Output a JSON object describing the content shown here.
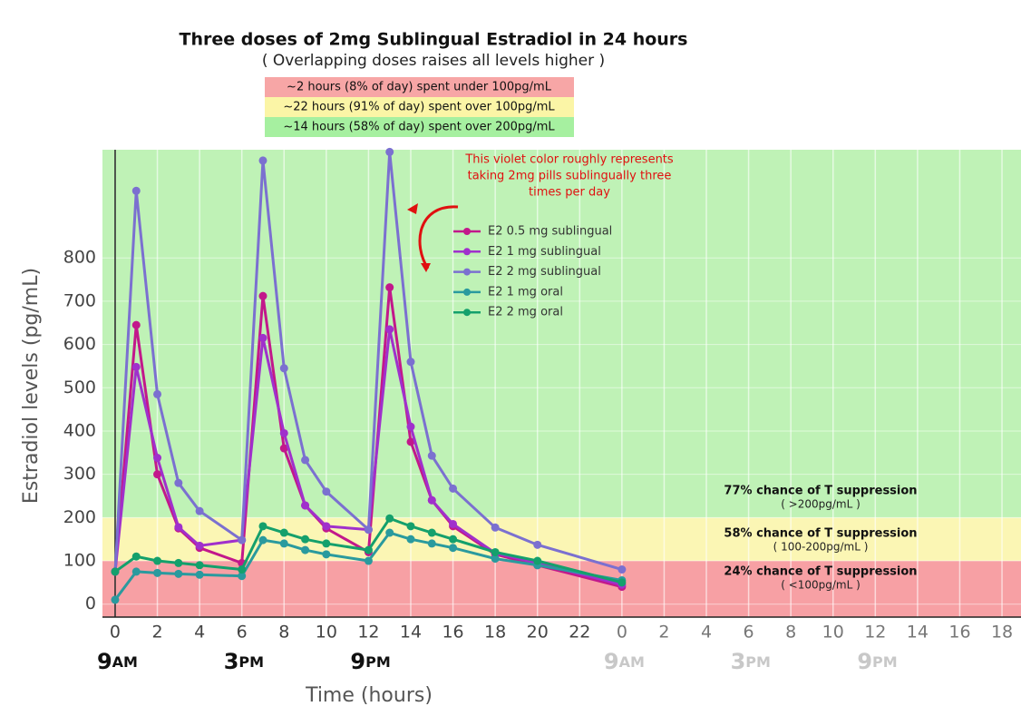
{
  "chart_data": {
    "type": "line",
    "title": "Three doses of 2mg Sublingual Estradiol in 24 hours",
    "subtitle": "( Overlapping doses raises all levels higher )",
    "stats": [
      {
        "text": "~2 hours (8% of day) spent under 100pg/mL",
        "color": "#f7a6a6"
      },
      {
        "text": "~22 hours (91% of day) spent over 100pg/mL",
        "color": "#fbf5a6"
      },
      {
        "text": "~14 hours (58% of day) spent over 200pg/mL",
        "color": "#a6f0a0"
      }
    ],
    "annotation": [
      "This violet color roughly represents",
      "taking 2mg pills sublingually three",
      "times per day"
    ],
    "x_label": "Time (hours)",
    "y_label": "Estradiol levels (pg/mL)",
    "xlim": [
      -0.6,
      42.9
    ],
    "ylim": [
      -30,
      1050
    ],
    "xticks": [
      0,
      2,
      4,
      6,
      8,
      10,
      12,
      14,
      16,
      18,
      20,
      22,
      {
        "value": 24,
        "label": "0"
      },
      {
        "value": 26,
        "label": "2"
      },
      {
        "value": 28,
        "label": "4"
      },
      {
        "value": 30,
        "label": "6"
      },
      {
        "value": 32,
        "label": "8"
      },
      {
        "value": 34,
        "label": "10"
      },
      {
        "value": 36,
        "label": "12"
      },
      {
        "value": 38,
        "label": "14"
      },
      {
        "value": 40,
        "label": "16"
      },
      {
        "value": 42,
        "label": "18"
      }
    ],
    "yticks": [
      0,
      100,
      200,
      300,
      400,
      500,
      600,
      700,
      800
    ],
    "grid": true,
    "bands": [
      {
        "from": 0,
        "to": 100,
        "color": "#f7a0a4",
        "label": "24% chance of T suppression",
        "range": "( <100pg/mL )"
      },
      {
        "from": 100,
        "to": 200,
        "color": "#fbf6b4",
        "label": "58% chance of T suppression",
        "range": "( 100-200pg/mL )"
      },
      {
        "from": 200,
        "to": 1050,
        "color": "#bff2b6",
        "label": "77% chance of T suppression",
        "range": "( >200pg/mL )"
      }
    ],
    "dose_labels": [
      {
        "x": 0,
        "hour": "9",
        "suffix": "AM",
        "color": "#111111"
      },
      {
        "x": 6,
        "hour": "3",
        "suffix": "PM",
        "color": "#111111"
      },
      {
        "x": 12,
        "hour": "9",
        "suffix": "PM",
        "color": "#111111"
      },
      {
        "x": 24,
        "hour": "9",
        "suffix": "AM",
        "color": "#c8c8c8"
      },
      {
        "x": 30,
        "hour": "3",
        "suffix": "PM",
        "color": "#c8c8c8"
      },
      {
        "x": 36,
        "hour": "9",
        "suffix": "PM",
        "color": "#c8c8c8"
      }
    ],
    "x": [
      0,
      1,
      2,
      3,
      4,
      6,
      7,
      8,
      9,
      10,
      12,
      13,
      14,
      15,
      16,
      18,
      20,
      24
    ],
    "series": [
      {
        "name": "E2 0.5 mg sublingual",
        "color": "#c2188b",
        "values": [
          75,
          645,
          300,
          175,
          130,
          95,
          712,
          360,
          228,
          175,
          120,
          732,
          375,
          240,
          180,
          115,
          90,
          40
        ]
      },
      {
        "name": "E2 1 mg sublingual",
        "color": "#a030cc",
        "values": [
          75,
          548,
          338,
          178,
          135,
          148,
          615,
          395,
          228,
          180,
          172,
          635,
          410,
          240,
          185,
          118,
          95,
          45
        ]
      },
      {
        "name": "E2 2 mg sublingual",
        "color": "#7b70d0",
        "values": [
          75,
          955,
          485,
          280,
          215,
          148,
          1025,
          545,
          333,
          260,
          172,
          1045,
          560,
          343,
          267,
          177,
          137,
          80
        ]
      },
      {
        "name": "E2 1 mg oral",
        "color": "#2a9a9e",
        "values": [
          10,
          75,
          72,
          70,
          68,
          65,
          148,
          140,
          125,
          115,
          100,
          165,
          150,
          140,
          130,
          105,
          90,
          55
        ]
      },
      {
        "name": "E2 2 mg oral",
        "color": "#14a06c",
        "values": [
          75,
          110,
          100,
          95,
          90,
          80,
          180,
          165,
          150,
          140,
          125,
          198,
          180,
          165,
          150,
          120,
          100,
          50
        ]
      }
    ]
  }
}
